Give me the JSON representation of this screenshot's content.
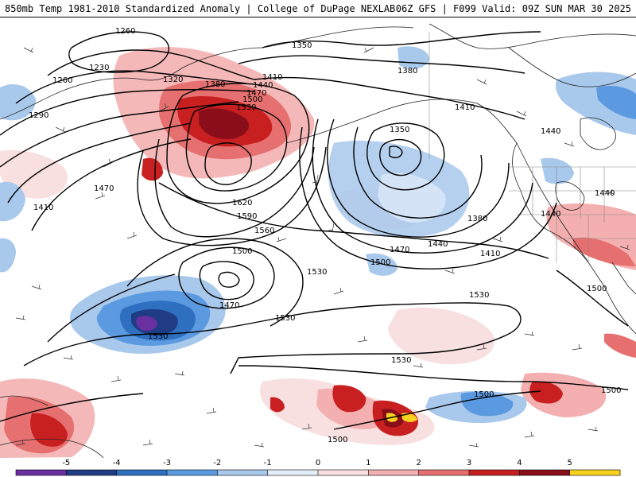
{
  "header": {
    "left_title": "850mb Temp 1981-2010 Standardized Anomaly | College of DuPage NEXLAB",
    "right_title": "06Z GFS | F099 Valid: 09Z SUN MAR 30 2025"
  },
  "map": {
    "contour_labels": [
      "1260",
      "1230",
      "1260",
      "1290",
      "1320",
      "1380",
      "1350",
      "1410",
      "1440",
      "1470",
      "1500",
      "1530",
      "1380",
      "1410",
      "1350",
      "1440",
      "1440",
      "1440",
      "1470",
      "1410",
      "1620",
      "1590",
      "1560",
      "1500",
      "1530",
      "1470",
      "1530",
      "1530",
      "1380",
      "1440",
      "1410",
      "1470",
      "1500",
      "1530",
      "1500",
      "1530",
      "1500",
      "1500",
      "1500"
    ]
  },
  "colorbar": {
    "ticks": [
      "-5",
      "-4",
      "-3",
      "-2",
      "-1",
      "0",
      "1",
      "2",
      "3",
      "4",
      "5"
    ],
    "colors": [
      "#6a2fa0",
      "#1f3c84",
      "#2e6fc0",
      "#5b9ae0",
      "#a8c8ec",
      "#e4eef8",
      "#f8e0e0",
      "#f4b0b0",
      "#e67070",
      "#c82020",
      "#8a0e1a",
      "#f7d21e"
    ]
  }
}
